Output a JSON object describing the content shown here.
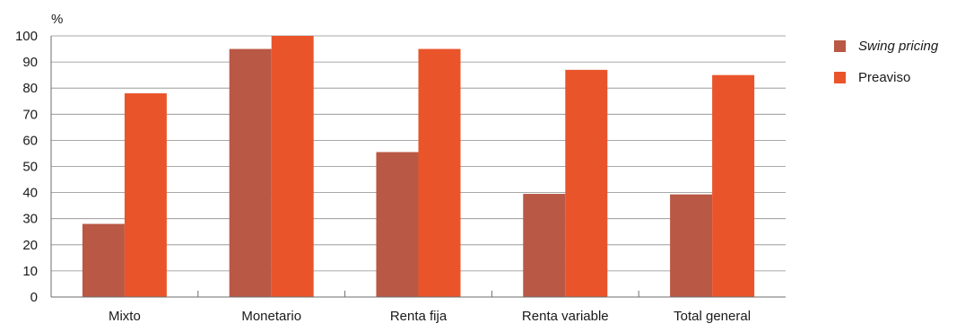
{
  "chart_data": {
    "type": "bar",
    "title": "",
    "xlabel": "",
    "ylabel": "%",
    "ylim": [
      0,
      100
    ],
    "yticks": [
      0,
      10,
      20,
      30,
      40,
      50,
      60,
      70,
      80,
      90,
      100
    ],
    "categories": [
      "Mixto",
      "Monetario",
      "Renta fija",
      "Renta variable",
      "Total general"
    ],
    "series": [
      {
        "name": "Swing pricing",
        "color": "#b95845",
        "italic": true,
        "values": [
          28,
          95,
          55.5,
          39.5,
          39.3
        ]
      },
      {
        "name": "Preaviso",
        "color": "#ea542b",
        "italic": false,
        "values": [
          78,
          100,
          95,
          87,
          85
        ]
      }
    ],
    "grid": true,
    "legend_position": "top-right"
  }
}
